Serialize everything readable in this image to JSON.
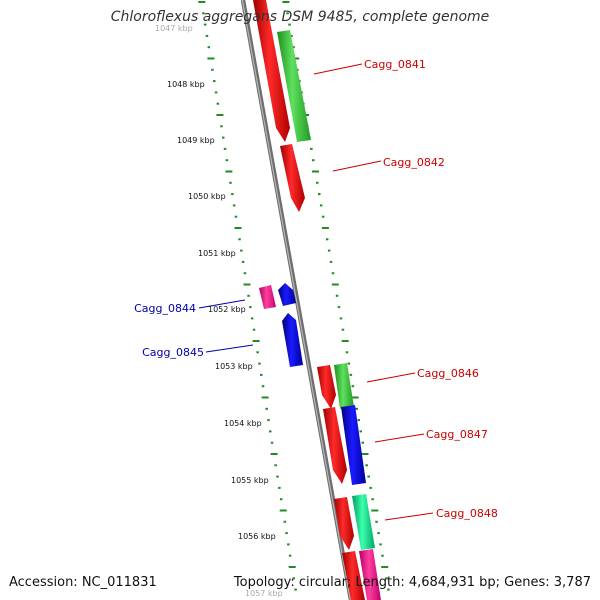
{
  "title": "Chloroflexus aggregans DSM 9485, complete genome",
  "footer": {
    "accession": "Accession: NC_011831",
    "summary": "Topology: circular; Length: 4,684,931 bp; Genes: 3,787"
  },
  "scale": {
    "unit": "kbp",
    "ticks": [
      "1047 kbp",
      "1048 kbp",
      "1049 kbp",
      "1050 kbp",
      "1051 kbp",
      "1052 kbp",
      "1053 kbp",
      "1054 kbp",
      "1055 kbp",
      "1056 kbp",
      "1057 kbp"
    ]
  },
  "genes": [
    {
      "label": "Cagg_0841",
      "color": "#cc0000"
    },
    {
      "label": "Cagg_0842",
      "color": "#cc0000"
    },
    {
      "label": "Cagg_0844",
      "color": "#0000aa"
    },
    {
      "label": "Cagg_0845",
      "color": "#0000aa"
    },
    {
      "label": "Cagg_0846",
      "color": "#cc0000"
    },
    {
      "label": "Cagg_0847",
      "color": "#cc0000"
    },
    {
      "label": "Cagg_0848",
      "color": "#cc0000"
    }
  ],
  "colors": {
    "backbone": "#888888",
    "tick_dots": "#228b22",
    "red_feature": "#ff0000",
    "green_feature": "#33cc33",
    "blue_feature": "#0000ee",
    "magenta_feature": "#ff1493",
    "teal_feature": "#00e38a"
  }
}
